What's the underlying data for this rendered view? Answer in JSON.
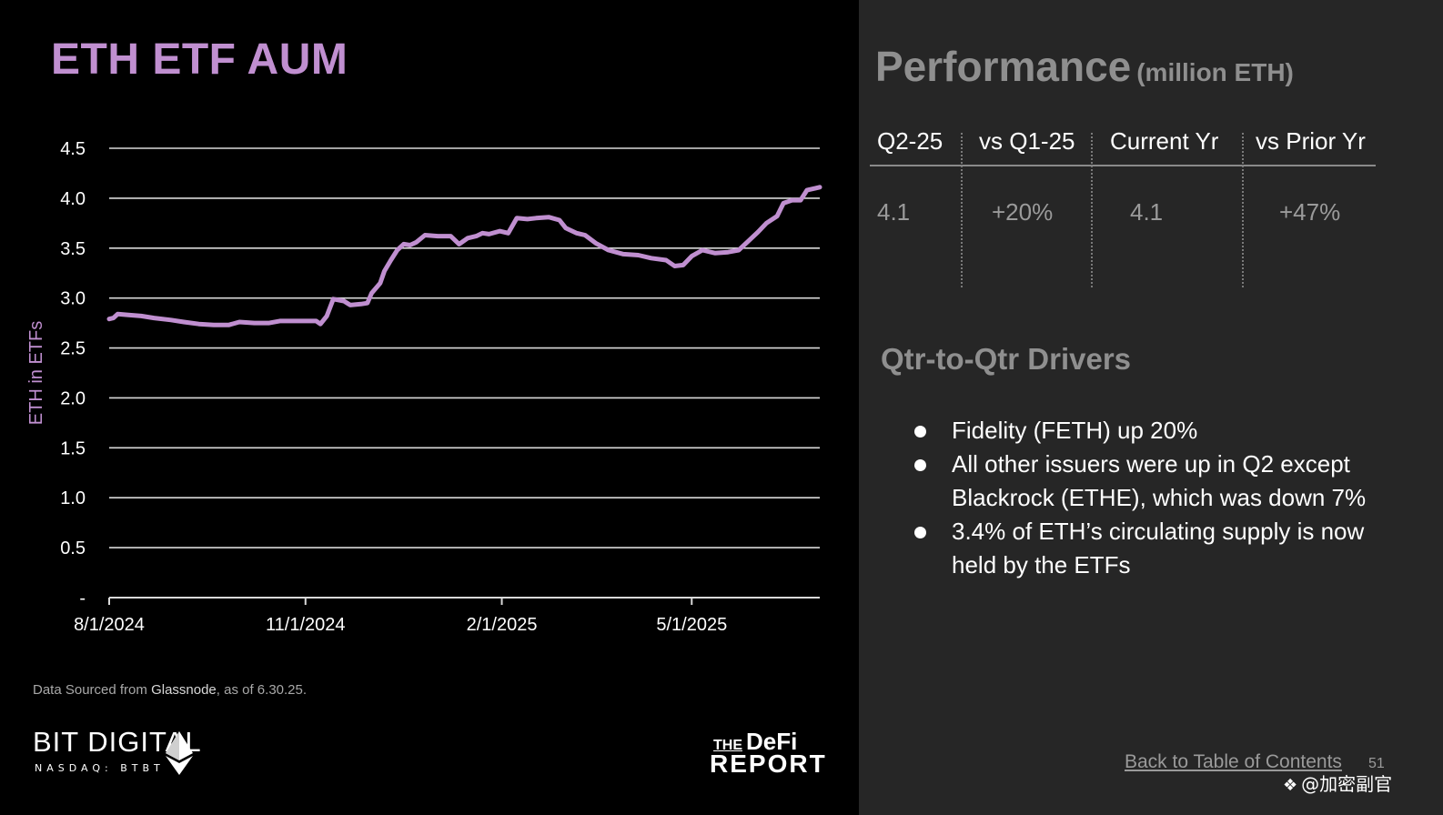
{
  "left_panel": {
    "title": "ETH ETF AUM",
    "source_prefix": "Data Sourced from ",
    "source_name": "Glassnode",
    "source_suffix": ", as of 6.30.25.",
    "logo_bit_digital": {
      "name": "BIT DIGITAL",
      "ticker": "NASDAQ: BTBT",
      "icon": "ethereum-diamond-icon"
    },
    "logo_defi_report": {
      "the": "THE",
      "defi": "DeFi",
      "report": "REPORT"
    }
  },
  "chart_data": {
    "type": "line",
    "ylabel": "ETH in ETFs",
    "xlabel": "",
    "ylim": [
      0,
      4.5
    ],
    "yticks": [
      {
        "value": 0,
        "label": "-"
      },
      {
        "value": 0.5,
        "label": "0.5"
      },
      {
        "value": 1.0,
        "label": "1.0"
      },
      {
        "value": 1.5,
        "label": "1.5"
      },
      {
        "value": 2.0,
        "label": "2.0"
      },
      {
        "value": 2.5,
        "label": "2.5"
      },
      {
        "value": 3.0,
        "label": "3.0"
      },
      {
        "value": 3.5,
        "label": "3.5"
      },
      {
        "value": 4.0,
        "label": "4.0"
      },
      {
        "value": 4.5,
        "label": "4.5"
      }
    ],
    "xlim": [
      "2024-08-01",
      "2025-06-30"
    ],
    "xticks": [
      {
        "date": "2024-08-01",
        "label": "8/1/2024"
      },
      {
        "date": "2024-11-01",
        "label": "11/1/2024"
      },
      {
        "date": "2025-02-01",
        "label": "2/1/2025"
      },
      {
        "date": "2025-05-01",
        "label": "5/1/2025"
      }
    ],
    "grid": true,
    "line_color": "#c08fd0",
    "series": [
      {
        "points": [
          [
            "2024-08-01",
            2.79
          ],
          [
            "2024-08-03",
            2.8
          ],
          [
            "2024-08-05",
            2.84
          ],
          [
            "2024-08-10",
            2.83
          ],
          [
            "2024-08-16",
            2.82
          ],
          [
            "2024-08-22",
            2.8
          ],
          [
            "2024-08-30",
            2.78
          ],
          [
            "2024-09-05",
            2.76
          ],
          [
            "2024-09-12",
            2.74
          ],
          [
            "2024-09-19",
            2.73
          ],
          [
            "2024-09-26",
            2.73
          ],
          [
            "2024-10-01",
            2.76
          ],
          [
            "2024-10-08",
            2.75
          ],
          [
            "2024-10-15",
            2.75
          ],
          [
            "2024-10-20",
            2.77
          ],
          [
            "2024-10-28",
            2.77
          ],
          [
            "2024-11-01",
            2.77
          ],
          [
            "2024-11-06",
            2.77
          ],
          [
            "2024-11-08",
            2.74
          ],
          [
            "2024-11-11",
            2.82
          ],
          [
            "2024-11-14",
            2.99
          ],
          [
            "2024-11-19",
            2.97
          ],
          [
            "2024-11-22",
            2.93
          ],
          [
            "2024-11-27",
            2.94
          ],
          [
            "2024-11-30",
            2.95
          ],
          [
            "2024-12-02",
            3.05
          ],
          [
            "2024-12-06",
            3.15
          ],
          [
            "2024-12-08",
            3.27
          ],
          [
            "2024-12-11",
            3.38
          ],
          [
            "2024-12-14",
            3.48
          ],
          [
            "2024-12-17",
            3.54
          ],
          [
            "2024-12-20",
            3.53
          ],
          [
            "2024-12-23",
            3.56
          ],
          [
            "2024-12-27",
            3.63
          ],
          [
            "2025-01-02",
            3.62
          ],
          [
            "2025-01-08",
            3.62
          ],
          [
            "2025-01-12",
            3.54
          ],
          [
            "2025-01-16",
            3.6
          ],
          [
            "2025-01-20",
            3.62
          ],
          [
            "2025-01-23",
            3.65
          ],
          [
            "2025-01-26",
            3.64
          ],
          [
            "2025-01-31",
            3.67
          ],
          [
            "2025-02-04",
            3.65
          ],
          [
            "2025-02-08",
            3.8
          ],
          [
            "2025-02-13",
            3.79
          ],
          [
            "2025-02-17",
            3.8
          ],
          [
            "2025-02-23",
            3.81
          ],
          [
            "2025-02-28",
            3.78
          ],
          [
            "2025-03-03",
            3.7
          ],
          [
            "2025-03-08",
            3.65
          ],
          [
            "2025-03-12",
            3.63
          ],
          [
            "2025-03-17",
            3.55
          ],
          [
            "2025-03-23",
            3.48
          ],
          [
            "2025-03-30",
            3.44
          ],
          [
            "2025-04-06",
            3.43
          ],
          [
            "2025-04-12",
            3.4
          ],
          [
            "2025-04-19",
            3.38
          ],
          [
            "2025-04-23",
            3.32
          ],
          [
            "2025-04-27",
            3.33
          ],
          [
            "2025-05-01",
            3.42
          ],
          [
            "2025-05-06",
            3.48
          ],
          [
            "2025-05-12",
            3.45
          ],
          [
            "2025-05-18",
            3.46
          ],
          [
            "2025-05-23",
            3.48
          ],
          [
            "2025-05-27",
            3.56
          ],
          [
            "2025-06-01",
            3.66
          ],
          [
            "2025-06-05",
            3.75
          ],
          [
            "2025-06-10",
            3.82
          ],
          [
            "2025-06-13",
            3.95
          ],
          [
            "2025-06-17",
            3.98
          ],
          [
            "2025-06-21",
            3.98
          ],
          [
            "2025-06-24",
            4.08
          ],
          [
            "2025-06-28",
            4.1
          ],
          [
            "2025-06-30",
            4.11
          ]
        ]
      }
    ]
  },
  "performance": {
    "title": "Performance",
    "unit": "(million ETH)",
    "columns": [
      {
        "header": "Q2-25",
        "value": "4.1"
      },
      {
        "header": "vs Q1-25",
        "value": "+20%"
      },
      {
        "header": "Current Yr",
        "value": "4.1"
      },
      {
        "header": "vs Prior Yr",
        "value": "+47%"
      }
    ]
  },
  "drivers": {
    "title": "Qtr-to-Qtr Drivers",
    "items": [
      "Fidelity (FETH) up 20%",
      "All other issuers were up in Q2 except Blackrock (ETHE), which was down 7%",
      "3.4% of ETH’s circulating supply is now held by the ETFs"
    ]
  },
  "footer": {
    "back_link": "Back to Table of Contents",
    "page_number": "51",
    "watermark": "@加密副官",
    "watermark_icon": "binance-diamond-icon"
  }
}
